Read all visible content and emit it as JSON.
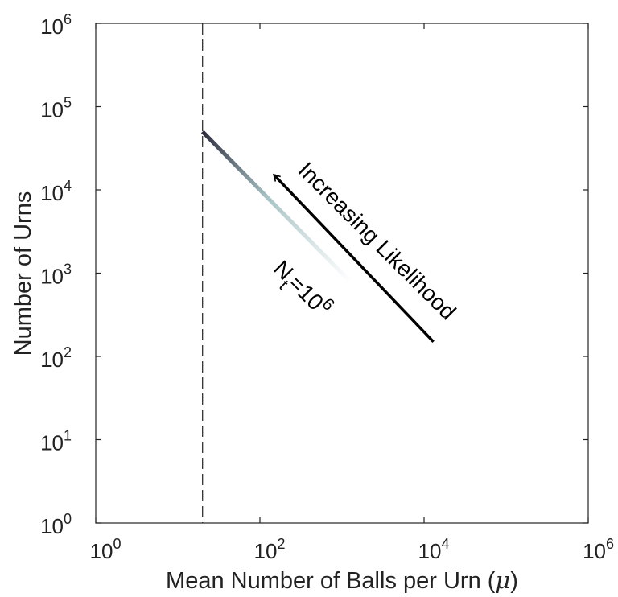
{
  "chart_data": {
    "type": "line",
    "title": "",
    "xlabel": "Mean Number of Balls per Urn (",
    "xlabel_symbol": "μ",
    "xlabel_close": ")",
    "ylabel": "Number of Urns",
    "xscale": "log",
    "yscale": "log",
    "xlim": [
      1,
      1000000
    ],
    "ylim": [
      1,
      1000000
    ],
    "tick_base": "10",
    "x_tick_exponents": [
      "0",
      "2",
      "4",
      "6"
    ],
    "y_tick_exponents": [
      "0",
      "1",
      "2",
      "3",
      "4",
      "5",
      "6"
    ],
    "grid": false,
    "colors": {
      "curve_start": "#2b2a3a",
      "curve_mid": "#a9c4c6",
      "curve_end": "#ffffff",
      "vline": "#222222",
      "axis": "#222222"
    },
    "series": [
      {
        "x": [
          20,
          40,
          80,
          160,
          320,
          640,
          1300
        ],
        "y": [
          50000,
          25000,
          12500,
          6250,
          3125,
          1562,
          770
        ],
        "style": "gradient"
      }
    ],
    "vline": {
      "x": 20,
      "style": "dashed"
    },
    "annotations": [
      {
        "name": "arrow-label",
        "text": "Increasing Likelihood",
        "x": 2300,
        "y": 2100,
        "rotation": 45,
        "font_size": 28
      },
      {
        "name": "nt-label",
        "main": "N",
        "subscript": "t",
        "middle": "=10",
        "superscript": "6",
        "x": 280,
        "y": 560,
        "rotation": 45,
        "font_size": 28
      }
    ],
    "arrow": {
      "from": [
        13000,
        150
      ],
      "to": [
        150,
        15000
      ]
    }
  }
}
